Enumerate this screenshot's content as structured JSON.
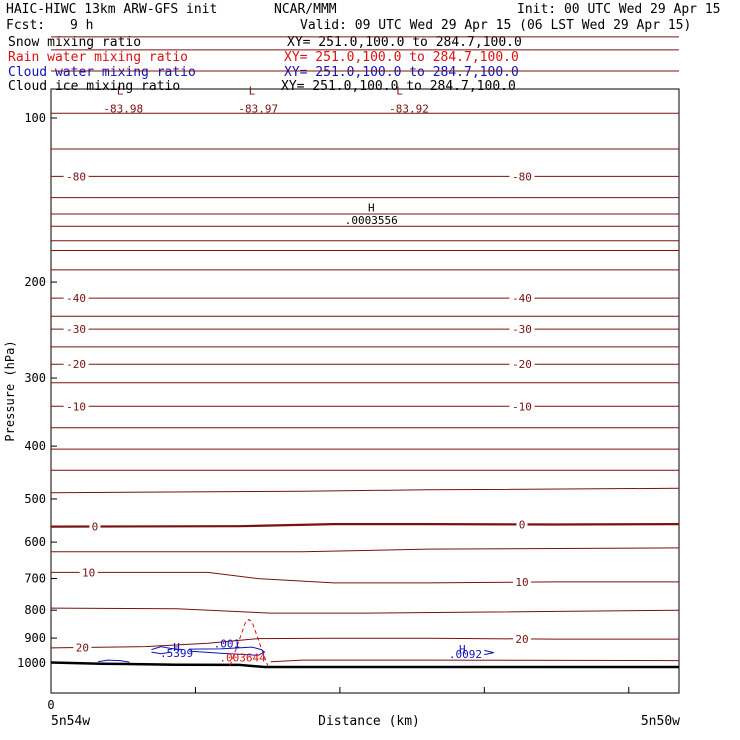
{
  "header": {
    "title": "HAIC-HIWC 13km ARW-GFS init",
    "org": "NCAR/MMM",
    "init": "Init: 00 UTC Wed 29 Apr 15",
    "fcst_label": "Fcst:",
    "fcst_value": "9 h",
    "valid": "Valid: 09 UTC Wed 29 Apr 15 (06 LST Wed 29 Apr 15)",
    "fields": [
      {
        "name": "Snow mixing ratio",
        "xy": "XY= 251.0,100.0 to 284.7,100.0",
        "color": "#000000"
      },
      {
        "name": "Rain water mixing ratio",
        "xy": "XY= 251.0,100.0 to 284.7,100.0",
        "color": "#dd1111"
      },
      {
        "name": "Cloud water mixing ratio",
        "xy": "XY= 251.0,100.0 to 284.7,100.0",
        "color": "#1111bb"
      },
      {
        "name": "Cloud ice mixing ratio",
        "xy": "XY= 251.0,100.0 to 284.7,100.0",
        "color": "#000000"
      }
    ]
  },
  "chart_data": {
    "type": "line",
    "xlabel": "Distance (km)",
    "ylabel": "Pressure (hPa)",
    "x_tick_labels": [
      "0"
    ],
    "x_end_labels": {
      "left": "5n54w",
      "right": "5n50w"
    },
    "y_ticks": [
      100,
      200,
      300,
      400,
      500,
      600,
      700,
      800,
      900,
      1000
    ],
    "ylim": [
      1050,
      50
    ],
    "y_scale": "log",
    "x_range": [
      0,
      1
    ],
    "x_minor_ticks": [
      0.23,
      0.46,
      0.69,
      0.92
    ],
    "colors": {
      "temperature": "#7a1010",
      "rain": "#dd1111",
      "cloud_water": "#1111bb",
      "terrain": "#000000"
    },
    "temperature_isotherms": [
      {
        "label": "-80",
        "label_x": [
          0.04,
          0.75
        ],
        "points": [
          [
            0,
            128
          ],
          [
            1,
            128
          ]
        ]
      },
      {
        "label": "-40",
        "label_x": [
          0.04,
          0.75
        ],
        "points": [
          [
            0,
            214
          ],
          [
            1,
            214
          ]
        ]
      },
      {
        "label": "-30",
        "label_x": [
          0.04,
          0.75
        ],
        "points": [
          [
            0,
            244
          ],
          [
            1,
            244
          ]
        ]
      },
      {
        "label": "-20",
        "label_x": [
          0.04,
          0.75
        ],
        "points": [
          [
            0,
            283
          ],
          [
            1,
            283
          ]
        ]
      },
      {
        "label": "-10",
        "label_x": [
          0.04,
          0.75
        ],
        "points": [
          [
            0,
            338
          ],
          [
            1,
            338
          ]
        ]
      },
      {
        "label": "0",
        "label_x": [
          0.07,
          0.75
        ],
        "bold": true,
        "points": [
          [
            0,
            562
          ],
          [
            0.3,
            561
          ],
          [
            0.45,
            556
          ],
          [
            0.6,
            556
          ],
          [
            0.8,
            557
          ],
          [
            1,
            556
          ]
        ]
      },
      {
        "label": "10",
        "label_x": [
          0.06,
          0.75
        ],
        "points": [
          [
            0,
            682
          ],
          [
            0.25,
            682
          ],
          [
            0.33,
            700
          ],
          [
            0.45,
            713
          ],
          [
            0.6,
            713
          ],
          [
            0.8,
            710
          ],
          [
            1,
            710
          ]
        ]
      },
      {
        "label": "20",
        "label_x": [
          0.05,
          0.75
        ],
        "points": [
          [
            0,
            938
          ],
          [
            0.15,
            933
          ],
          [
            0.25,
            920
          ],
          [
            0.33,
            902
          ],
          [
            0.45,
            901
          ],
          [
            0.6,
            901
          ],
          [
            0.8,
            904
          ],
          [
            1,
            904
          ]
        ]
      }
    ],
    "unlabeled_isotherms": [
      [
        [
          0,
          71
        ],
        [
          1,
          71
        ]
      ],
      [
        [
          0,
          75
        ],
        [
          1,
          75
        ]
      ],
      [
        [
          0,
          82
        ],
        [
          1,
          82
        ]
      ],
      [
        [
          0,
          98
        ],
        [
          1,
          98
        ]
      ],
      [
        [
          0,
          114
        ],
        [
          1,
          114
        ]
      ],
      [
        [
          0,
          140
        ],
        [
          1,
          140
        ]
      ],
      [
        [
          0,
          150
        ],
        [
          1,
          150
        ]
      ],
      [
        [
          0,
          158
        ],
        [
          1,
          158
        ]
      ],
      [
        [
          0,
          168
        ],
        [
          1,
          168
        ]
      ],
      [
        [
          0,
          175
        ],
        [
          1,
          175
        ]
      ],
      [
        [
          0,
          190
        ],
        [
          1,
          190
        ]
      ],
      [
        [
          0,
          231
        ],
        [
          1,
          231
        ]
      ],
      [
        [
          0,
          263
        ],
        [
          1,
          263
        ]
      ],
      [
        [
          0,
          306
        ],
        [
          1,
          306
        ]
      ],
      [
        [
          0,
          370
        ],
        [
          1,
          370
        ]
      ],
      [
        [
          0,
          405
        ],
        [
          1,
          405
        ]
      ],
      [
        [
          0,
          443
        ],
        [
          1,
          443
        ]
      ],
      [
        [
          0,
          487
        ],
        [
          0.4,
          484
        ],
        [
          0.6,
          481
        ],
        [
          1,
          478
        ]
      ],
      [
        [
          0,
          625
        ],
        [
          0.4,
          625
        ],
        [
          0.6,
          618
        ],
        [
          1,
          615
        ]
      ],
      [
        [
          0,
          793
        ],
        [
          0.2,
          795
        ],
        [
          0.35,
          810
        ],
        [
          0.5,
          810
        ],
        [
          0.7,
          806
        ],
        [
          1,
          800
        ]
      ],
      [
        [
          0.35,
          995
        ],
        [
          0.4,
          988
        ],
        [
          0.6,
          988
        ],
        [
          1,
          990
        ]
      ]
    ],
    "terrain": [
      [
        0,
        998
      ],
      [
        0.08,
        1003
      ],
      [
        0.2,
        1007
      ],
      [
        0.3,
        1008
      ],
      [
        0.34,
        1017
      ],
      [
        1,
        1017
      ]
    ],
    "rain_contour": [
      [
        0.285,
        1010
      ],
      [
        0.295,
        940
      ],
      [
        0.31,
        840
      ],
      [
        0.315,
        832
      ],
      [
        0.32,
        840
      ],
      [
        0.335,
        940
      ],
      [
        0.345,
        1010
      ]
    ],
    "cloud_water_contours": [
      [
        [
          0.22,
          943
        ],
        [
          0.27,
          942
        ],
        [
          0.32,
          935
        ],
        [
          0.335,
          945
        ],
        [
          0.34,
          955
        ],
        [
          0.33,
          968
        ],
        [
          0.27,
          960
        ],
        [
          0.22,
          951
        ]
      ],
      [
        [
          0.16,
          945
        ],
        [
          0.175,
          933
        ],
        [
          0.19,
          940
        ],
        [
          0.21,
          945
        ]
      ],
      [
        [
          0.16,
          955
        ],
        [
          0.175,
          962
        ],
        [
          0.19,
          956
        ]
      ],
      [
        [
          0.075,
          995
        ],
        [
          0.09,
          988
        ],
        [
          0.11,
          990
        ],
        [
          0.125,
          996
        ]
      ],
      [
        [
          0.69,
          948
        ],
        [
          0.705,
          957
        ],
        [
          0.69,
          965
        ]
      ]
    ],
    "annotations": [
      {
        "text": "L",
        "x": 0.11,
        "p": 89,
        "color": "#7a1010"
      },
      {
        "text": "-83.98",
        "x": 0.115,
        "p": 96,
        "color": "#7a1010"
      },
      {
        "text": "L",
        "x": 0.32,
        "p": 89,
        "color": "#7a1010"
      },
      {
        "text": "-83.97",
        "x": 0.33,
        "p": 96,
        "color": "#7a1010"
      },
      {
        "text": "L",
        "x": 0.555,
        "p": 89,
        "color": "#7a1010"
      },
      {
        "text": "-83.92",
        "x": 0.57,
        "p": 96,
        "color": "#7a1010"
      },
      {
        "text": "H",
        "x": 0.51,
        "p": 146,
        "color": "#000000"
      },
      {
        "text": ".0003556",
        "x": 0.51,
        "p": 154,
        "color": "#000000"
      },
      {
        "text": "H",
        "x": 0.2,
        "p": 935,
        "color": "#1111bb"
      },
      {
        "text": ".5399",
        "x": 0.2,
        "p": 958,
        "color": "#1111bb"
      },
      {
        "text": ".001",
        "x": 0.28,
        "p": 920,
        "color": "#1111bb"
      },
      {
        "text": ".003644",
        "x": 0.305,
        "p": 978,
        "color": "#dd1111"
      },
      {
        "text": "H",
        "x": 0.655,
        "p": 942,
        "color": "#1111bb"
      },
      {
        "text": ".0092",
        "x": 0.66,
        "p": 962,
        "color": "#1111bb"
      }
    ]
  }
}
